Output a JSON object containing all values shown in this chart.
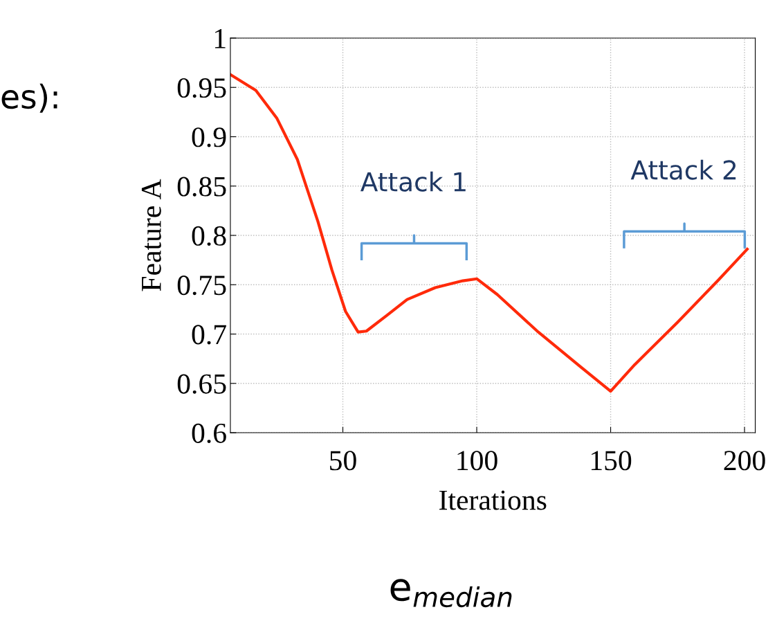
{
  "chart_data": {
    "type": "line",
    "xlabel": "Iterations",
    "ylabel": "Feature A",
    "x": [
      8,
      17.5,
      25.3,
      33,
      40.7,
      45.9,
      51,
      55.7,
      58.8,
      66.5,
      74,
      84.5,
      94.8,
      100,
      107.7,
      123,
      138.7,
      150,
      159,
      175,
      190,
      201
    ],
    "series": [
      {
        "color": "#ff2a0a",
        "values": [
          0.963,
          0.947,
          0.919,
          0.877,
          0.814,
          0.765,
          0.723,
          0.702,
          0.703,
          0.719,
          0.735,
          0.747,
          0.754,
          0.756,
          0.74,
          0.702,
          0.667,
          0.642,
          0.669,
          0.712,
          0.754,
          0.786
        ]
      }
    ],
    "xlim": [
      8,
      204
    ],
    "xticks": [
      50,
      100,
      150,
      200
    ],
    "ylim": [
      0.6,
      1
    ],
    "yticks": [
      {
        "value": 0.6,
        "label": "0.6"
      },
      {
        "value": 0.65,
        "label": "0.65"
      },
      {
        "value": 0.7,
        "label": "0.7"
      },
      {
        "value": 0.75,
        "label": "0.75"
      },
      {
        "value": 0.8,
        "label": "0.8"
      },
      {
        "value": 0.85,
        "label": "0.85"
      },
      {
        "value": 0.9,
        "label": "0.9"
      },
      {
        "value": 0.95,
        "label": "0.95"
      },
      {
        "value": 1,
        "label": "1"
      }
    ],
    "grid": true,
    "marker": "none",
    "line_style": "solid",
    "annotations": [
      "Attack 1",
      "Attack 2",
      "es):",
      "e$_{median}$"
    ]
  }
}
